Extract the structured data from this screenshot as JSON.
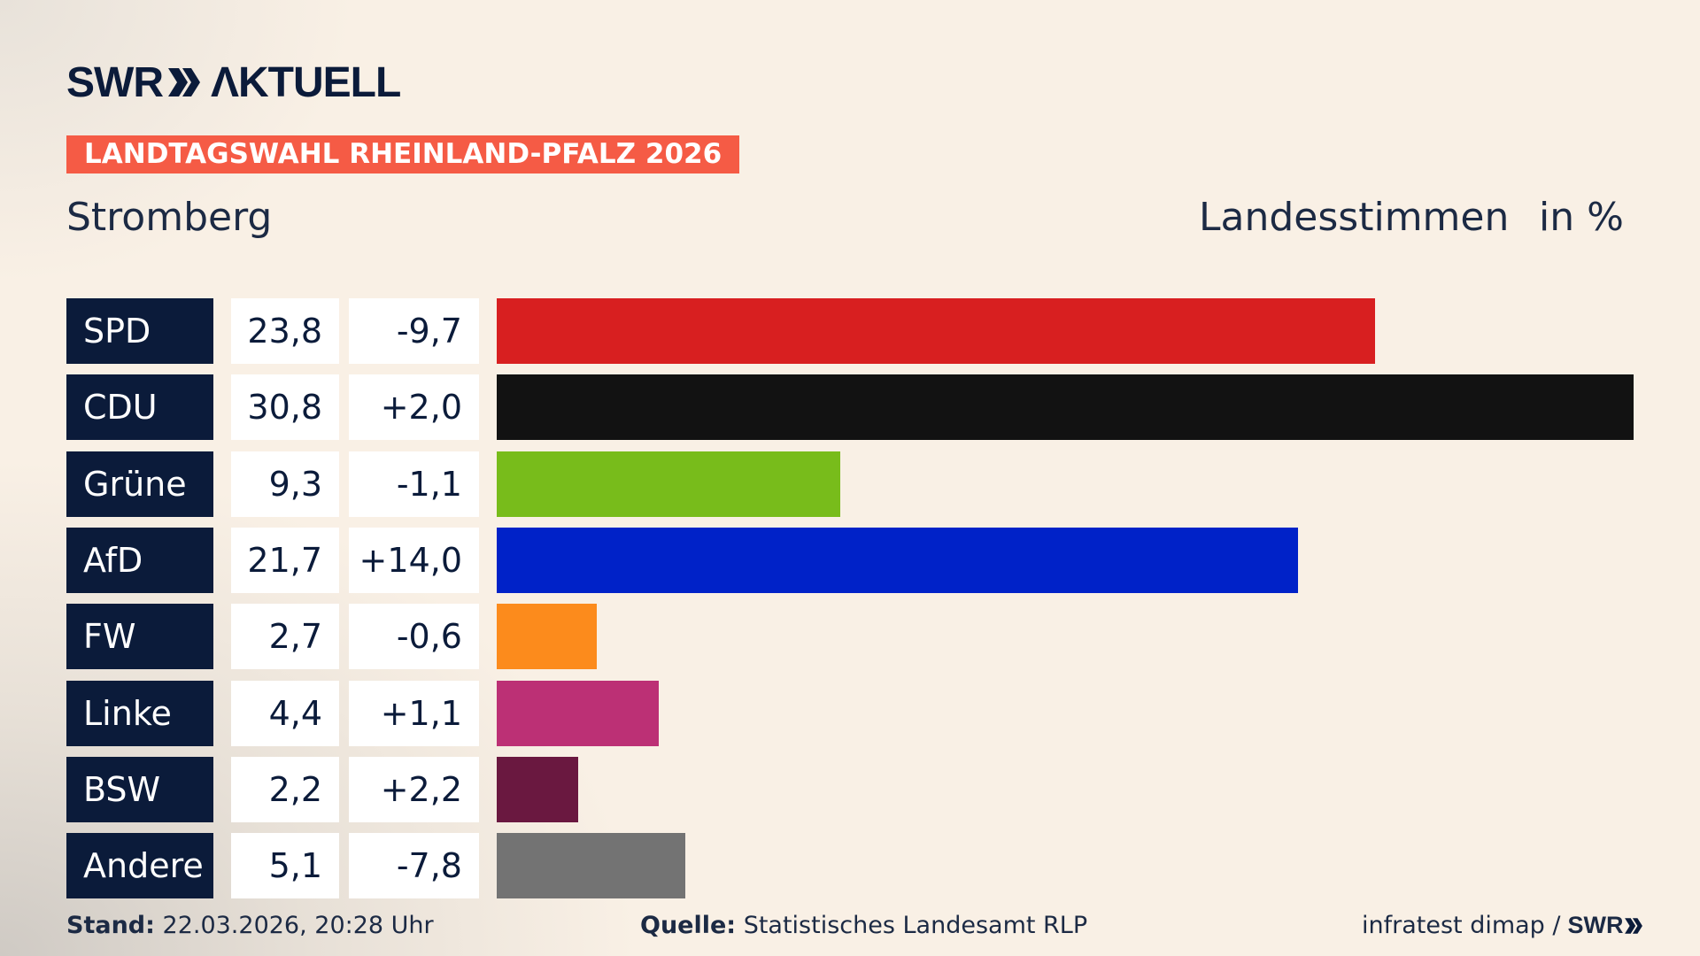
{
  "logo": {
    "text": "SWR AKTUELL"
  },
  "banner": "LANDTAGSWAHL RHEINLAND-PFALZ 2026",
  "region": "Stromberg",
  "header_right": {
    "label": "Landesstimmen",
    "unit": "in %"
  },
  "chart_data": {
    "type": "bar",
    "orientation": "horizontal",
    "categories": [
      "SPD",
      "CDU",
      "Grüne",
      "AfD",
      "FW",
      "Linke",
      "BSW",
      "Andere"
    ],
    "values": [
      23.8,
      30.8,
      9.3,
      21.7,
      2.7,
      4.4,
      2.2,
      5.1
    ],
    "values_label": [
      "23,8",
      "30,8",
      "9,3",
      "21,7",
      "2,7",
      "4,4",
      "2,2",
      "5,1"
    ],
    "diff_label": [
      "-9,7",
      "+2,0",
      "-1,1",
      "+14,0",
      "-0,6",
      "+1,1",
      "+2,2",
      "-7,8"
    ],
    "colors": [
      "#d81f20",
      "#121212",
      "#78bc1b",
      "#0022c8",
      "#fc8b1c",
      "#bc3075",
      "#6a1840",
      "#737373"
    ],
    "title": "Landesstimmen",
    "ylabel": "in %",
    "grid": false
  },
  "footer": {
    "stand_label": "Stand:",
    "stand_value": "22.03.2026, 20:28 Uhr",
    "quelle_label": "Quelle:",
    "quelle_value": "Statistisches Landesamt RLP",
    "credit": "infratest dimap /",
    "credit_logo": "SWR"
  }
}
